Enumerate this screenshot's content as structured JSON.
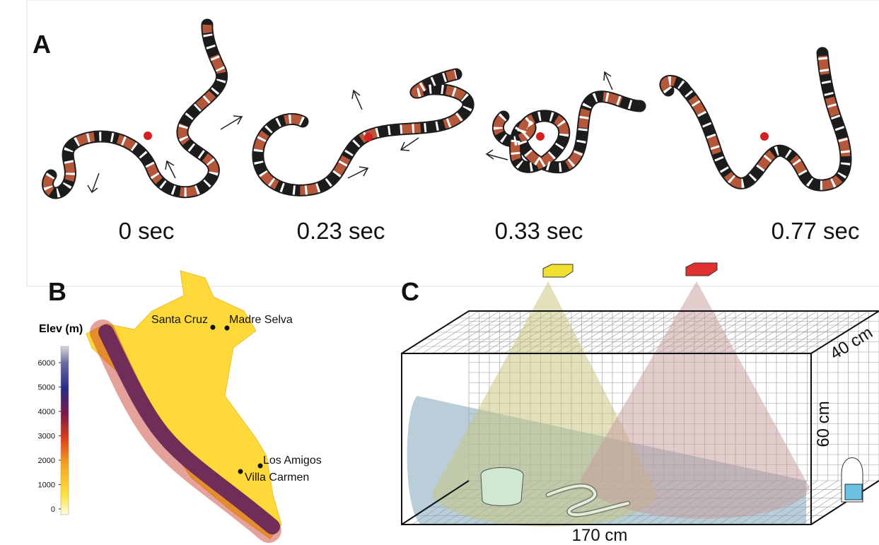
{
  "panel_a": {
    "label": "A",
    "frames": [
      {
        "time": "0 sec"
      },
      {
        "time": "0.23 sec"
      },
      {
        "time": "0.33 sec"
      },
      {
        "time": "0.77 sec"
      }
    ]
  },
  "panel_b": {
    "label": "B",
    "legend_title": "Elev (m)",
    "legend_ticks": [
      0,
      1000,
      2000,
      3000,
      4000,
      5000,
      6000
    ],
    "sites": [
      "Santa Cruz",
      "Madre Selva",
      "Los Amigos",
      "Villa Carmen"
    ]
  },
  "panel_c": {
    "label": "C",
    "dimensions": {
      "length": "170 cm",
      "height": "60 cm",
      "depth": "40 cm"
    }
  }
}
